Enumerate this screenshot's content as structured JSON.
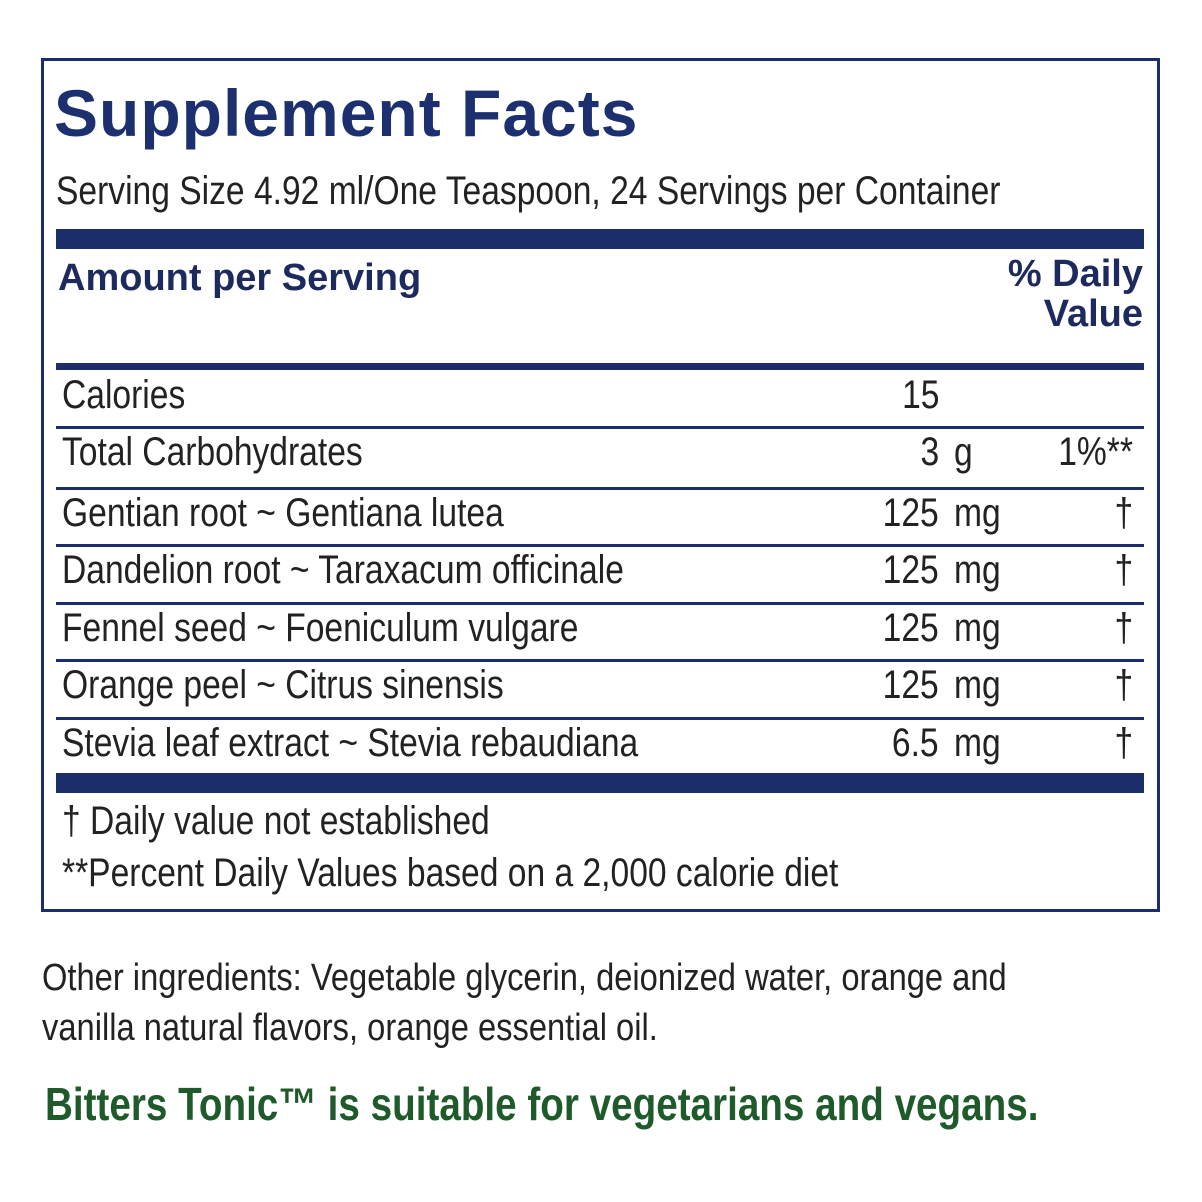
{
  "title": "Supplement Facts",
  "serving": "Serving Size 4.92 ml/One Teaspoon, 24 Servings per Container",
  "header": {
    "amount": "Amount per Serving",
    "daily_value": "% Daily Value"
  },
  "rows": [
    {
      "name": "Calories",
      "amount": "15"
    },
    {
      "name": "Total Carbohydrates",
      "amount": "3",
      "unit": "g",
      "dv": "1%**"
    },
    {
      "name": "Gentian root ~ Gentiana lutea",
      "amount": "125",
      "unit": "mg",
      "dv": "†"
    },
    {
      "name": "Dandelion root ~ Taraxacum officinale",
      "amount": "125",
      "unit": "mg",
      "dv": "†"
    },
    {
      "name": "Fennel seed ~ Foeniculum vulgare",
      "amount": "125",
      "unit": "mg",
      "dv": "†"
    },
    {
      "name": "Orange peel ~ Citrus sinensis",
      "amount": "125",
      "unit": "mg",
      "dv": "†"
    },
    {
      "name": "Stevia leaf extract ~ Stevia rebaudiana",
      "amount": "6.5",
      "unit": "mg",
      "dv": "†"
    }
  ],
  "footnotes": [
    "†  Daily value not established",
    "**Percent Daily Values based on a 2,000 calorie diet"
  ],
  "other_ingredients": "Other ingredients: Vegetable glycerin, deionized water, orange and vanilla natural flavors, orange essential oil.",
  "note": "Bitters Tonic™ is suitable for vegetarians and vegans."
}
